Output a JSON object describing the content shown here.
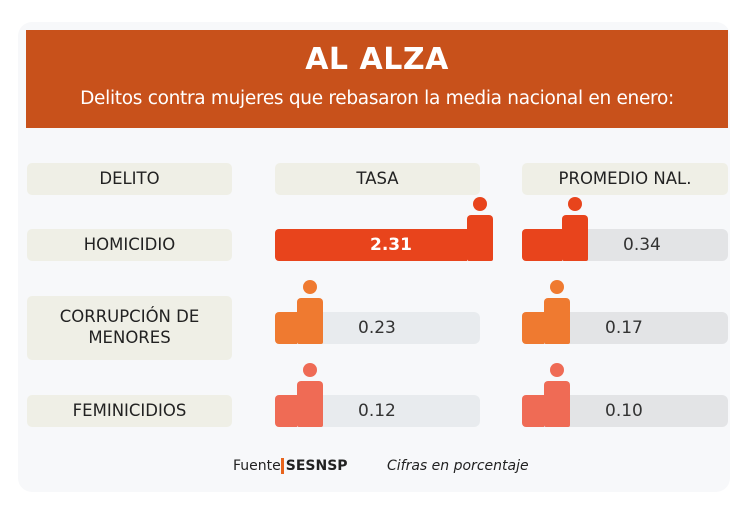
{
  "header": {
    "title": "AL ALZA",
    "subtitle": "Delitos contra mujeres que rebasaron la media nacional en enero:"
  },
  "columns": [
    "DELITO",
    "TASA",
    "PROMEDIO NAL."
  ],
  "rows": [
    {
      "label": "HOMICIDIO",
      "tasa": "2.31",
      "promedio": "0.34",
      "color": "#e8441c"
    },
    {
      "label": "CORRUPCIÓN DE MENORES",
      "tasa": "0.23",
      "promedio": "0.17",
      "color": "#ef7a30"
    },
    {
      "label": "FEMINICIDIOS",
      "tasa": "0.12",
      "promedio": "0.10",
      "color": "#ef6b55"
    }
  ],
  "footer": {
    "source_label": "Fuente",
    "source": "SESNSP",
    "note": "Cifras en porcentaje"
  },
  "icons": {
    "figure": "person-icon"
  }
}
